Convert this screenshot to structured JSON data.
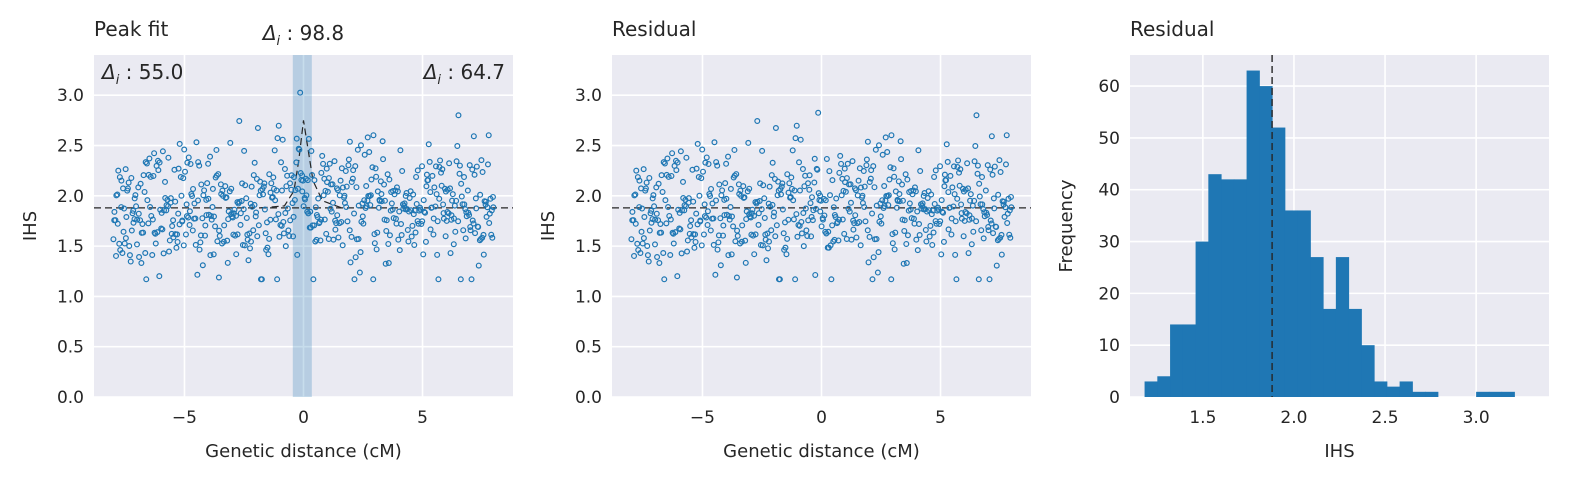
{
  "chart_data": [
    {
      "type": "scatter",
      "title": "Peak fit",
      "xlabel": "Genetic distance (cM)",
      "ylabel": "IHS",
      "xlim": [
        -8.8,
        8.8
      ],
      "ylim": [
        0,
        3.4
      ],
      "xticks": [
        -5,
        0,
        5
      ],
      "xtick_labels": [
        "−5",
        "0",
        "5"
      ],
      "yticks": [
        0.0,
        0.5,
        1.0,
        1.5,
        2.0,
        2.5,
        3.0
      ],
      "ytick_labels": [
        "0.0",
        "0.5",
        "1.0",
        "1.5",
        "2.0",
        "2.5",
        "3.0"
      ],
      "grid": true,
      "baseline": 1.88,
      "peak_center": 0.0,
      "peak_band": [
        -0.45,
        0.35
      ],
      "peak_curve": {
        "x": [
          -1.8,
          -0.8,
          -0.4,
          -0.2,
          0.0,
          0.2,
          0.4,
          0.8,
          1.6
        ],
        "y": [
          1.88,
          1.9,
          2.05,
          2.35,
          2.75,
          2.45,
          2.15,
          1.95,
          1.88
        ]
      },
      "annotations": [
        {
          "symbol": "Δ",
          "sub": "i",
          "text": " : 98.8",
          "position": "above-peak"
        },
        {
          "symbol": "Δ",
          "sub": "i",
          "text": " : 55.0",
          "position": "top-left"
        },
        {
          "symbol": "Δ",
          "sub": "i",
          "text": " : 64.7",
          "position": "top-right"
        }
      ],
      "n_points": 600,
      "points_note_values": {
        "x_range": [
          -8,
          8
        ],
        "y_center": 1.88
      },
      "marker": "open-circle",
      "color": "#1f77b4"
    },
    {
      "type": "scatter",
      "title": "Residual",
      "xlabel": "Genetic distance (cM)",
      "ylabel": "IHS",
      "xlim": [
        -8.8,
        8.8
      ],
      "ylim": [
        0,
        3.4
      ],
      "xticks": [
        -5,
        0,
        5
      ],
      "xtick_labels": [
        "−5",
        "0",
        "5"
      ],
      "yticks": [
        0.0,
        0.5,
        1.0,
        1.5,
        2.0,
        2.5,
        3.0
      ],
      "ytick_labels": [
        "0.0",
        "0.5",
        "1.0",
        "1.5",
        "2.0",
        "2.5",
        "3.0"
      ],
      "grid": true,
      "baseline": 1.88,
      "marker": "open-circle",
      "color": "#1f77b4"
    },
    {
      "type": "bar",
      "subtype": "histogram",
      "title": "Residual",
      "xlabel": "IHS",
      "ylabel": "Frequency",
      "xlim": [
        1.1,
        3.4
      ],
      "ylim": [
        0,
        66
      ],
      "xticks": [
        1.5,
        2.0,
        2.5,
        3.0
      ],
      "xtick_labels": [
        "1.5",
        "2.0",
        "2.5",
        "3.0"
      ],
      "yticks": [
        0,
        10,
        20,
        30,
        40,
        50,
        60
      ],
      "ytick_labels": [
        "0",
        "10",
        "20",
        "30",
        "40",
        "50",
        "60"
      ],
      "grid": true,
      "bin_start": 1.18,
      "bin_width": 0.07,
      "counts": [
        3,
        4,
        14,
        14,
        30,
        43,
        42,
        42,
        63,
        60,
        52,
        36,
        36,
        27,
        17,
        27,
        17,
        10,
        3,
        2,
        3,
        1,
        1,
        0,
        0,
        0,
        1,
        1,
        1
      ],
      "mean_line": 1.88,
      "color": "#1f77b4"
    }
  ]
}
